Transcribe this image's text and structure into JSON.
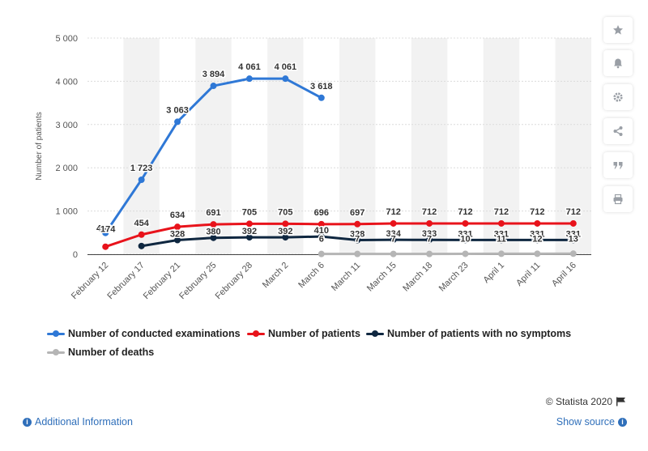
{
  "chart_data": {
    "type": "line",
    "ylabel": "Number of patients",
    "ylim": [
      0,
      5000
    ],
    "yticks": [
      0,
      1000,
      2000,
      3000,
      4000,
      5000
    ],
    "ytick_labels": [
      "0",
      "1 000",
      "2 000",
      "3 000",
      "4 000",
      "5 000"
    ],
    "categories": [
      "February 12",
      "February 17",
      "February 21",
      "February 25",
      "February 28",
      "March 2",
      "March 6",
      "March 11",
      "March 15",
      "March 18",
      "March 23",
      "April 1",
      "April 11",
      "April 16"
    ],
    "grid": "alternating vertical bands",
    "legend_position": "bottom",
    "series": [
      {
        "name": "Number of conducted examinations",
        "color": "#2f78d6",
        "values": [
          492,
          1723,
          3063,
          3894,
          4061,
          4061,
          3618,
          null,
          null,
          null,
          null,
          null,
          null,
          null
        ],
        "labels": [
          "492",
          "1 723",
          "3 063",
          "3 894",
          "4 061",
          "4 061",
          "3 618",
          "",
          "",
          "",
          "",
          "",
          "",
          ""
        ]
      },
      {
        "name": "Number of patients",
        "color": "#e8131b",
        "values": [
          174,
          454,
          634,
          691,
          705,
          705,
          696,
          697,
          712,
          712,
          712,
          712,
          712,
          712
        ],
        "labels": [
          "174",
          "454",
          "634",
          "691",
          "705",
          "705",
          "696",
          "697",
          "712",
          "712",
          "712",
          "712",
          "712",
          "712"
        ]
      },
      {
        "name": "Number of patients with no symptoms",
        "color": "#0f2740",
        "values": [
          null,
          190,
          328,
          380,
          392,
          392,
          410,
          328,
          334,
          333,
          331,
          331,
          331,
          331
        ],
        "labels": [
          "",
          "",
          "328",
          "380",
          "392",
          "392",
          "410",
          "328",
          "334",
          "333",
          "331",
          "331",
          "331",
          "331"
        ]
      },
      {
        "name": "Number of deaths",
        "color": "#b5b5b5",
        "values": [
          null,
          null,
          null,
          null,
          null,
          null,
          6,
          7,
          7,
          7,
          10,
          11,
          12,
          13
        ],
        "labels": [
          "",
          "",
          "",
          "",
          "",
          "",
          "6",
          "7",
          "7",
          "7",
          "10",
          "11",
          "12",
          "13"
        ]
      }
    ]
  },
  "credit": "© Statista 2020",
  "footer": {
    "additional_info": "Additional Information",
    "show_source": "Show source"
  },
  "toolbar": [
    "star-icon",
    "bell-icon",
    "gear-icon",
    "share-icon",
    "quote-icon",
    "print-icon"
  ]
}
